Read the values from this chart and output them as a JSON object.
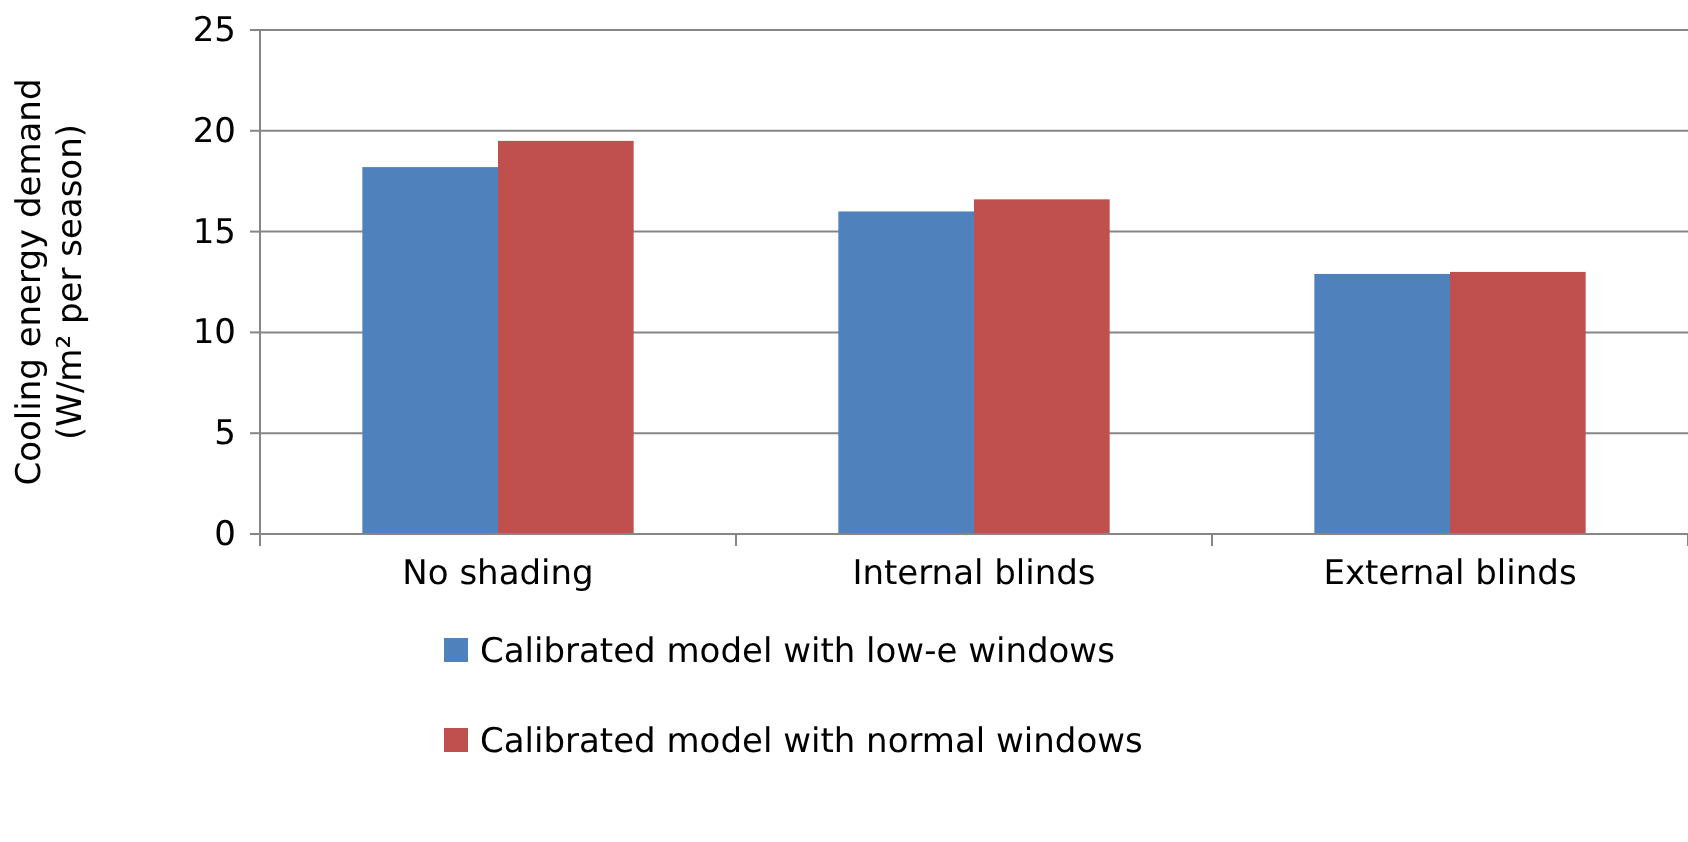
{
  "chart_data": {
    "type": "bar",
    "ylabel": "Cooling energy demand\n(W/m² per season)",
    "categories": [
      "No shading",
      "Internal blinds",
      "External blinds"
    ],
    "series": [
      {
        "name": "Calibrated model with low-e windows",
        "color": "#4f81bd",
        "values": [
          18.2,
          16.0,
          12.9
        ]
      },
      {
        "name": "Calibrated model with normal windows",
        "color": "#c0504d",
        "values": [
          19.5,
          16.6,
          13.0
        ]
      }
    ],
    "ylim": [
      0,
      25
    ],
    "yticks": [
      0,
      5,
      10,
      15,
      20,
      25
    ],
    "grid": "y",
    "legend": "bottom"
  }
}
